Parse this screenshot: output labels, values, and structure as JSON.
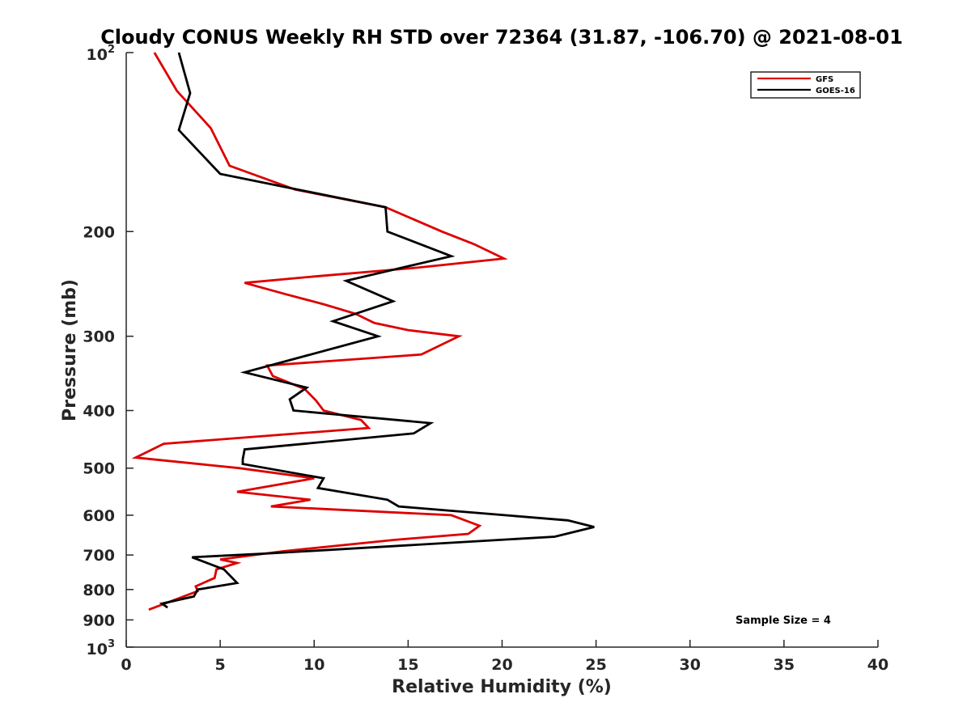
{
  "chart_data": {
    "type": "line",
    "title": "Cloudy CONUS Weekly RH STD over 72364 (31.87, -106.70) @ 2021-08-01",
    "xlabel": "Relative Humidity (%)",
    "ylabel": "Pressure (mb)",
    "xlim": [
      0,
      40
    ],
    "ylim": [
      100,
      1000
    ],
    "y_scale": "log",
    "y_reversed": true,
    "grid": false,
    "legend_position": "top-right",
    "x_ticks": [
      0,
      5,
      10,
      15,
      20,
      25,
      30,
      35,
      40
    ],
    "x_tick_labels": [
      "0",
      "5",
      "10",
      "15",
      "20",
      "25",
      "30",
      "35",
      "40"
    ],
    "y_ticks": [
      200,
      300,
      400,
      500,
      600,
      700,
      800,
      900
    ],
    "y_tick_labels": [
      "200",
      "300",
      "400",
      "500",
      "600",
      "700",
      "800",
      "900"
    ],
    "y_end_labels": [
      {
        "base": "10",
        "exp": "2",
        "value": 100
      },
      {
        "base": "10",
        "exp": "3",
        "value": 1000
      }
    ],
    "series": [
      {
        "name": "GFS",
        "color": "#dd0000",
        "points": [
          {
            "x": 1.5,
            "y": 100
          },
          {
            "x": 2.7,
            "y": 116
          },
          {
            "x": 4.5,
            "y": 134
          },
          {
            "x": 5.5,
            "y": 155
          },
          {
            "x": 9.0,
            "y": 170
          },
          {
            "x": 13.8,
            "y": 182
          },
          {
            "x": 16.8,
            "y": 200
          },
          {
            "x": 18.5,
            "y": 210
          },
          {
            "x": 20.1,
            "y": 222
          },
          {
            "x": 15.5,
            "y": 230
          },
          {
            "x": 10.0,
            "y": 238
          },
          {
            "x": 6.3,
            "y": 244
          },
          {
            "x": 8.5,
            "y": 255
          },
          {
            "x": 10.5,
            "y": 265
          },
          {
            "x": 12.2,
            "y": 275
          },
          {
            "x": 13.2,
            "y": 285
          },
          {
            "x": 15.0,
            "y": 293
          },
          {
            "x": 17.7,
            "y": 300
          },
          {
            "x": 15.7,
            "y": 322
          },
          {
            "x": 7.5,
            "y": 336
          },
          {
            "x": 7.8,
            "y": 350
          },
          {
            "x": 9.5,
            "y": 368
          },
          {
            "x": 10.1,
            "y": 385
          },
          {
            "x": 10.5,
            "y": 400
          },
          {
            "x": 12.5,
            "y": 415
          },
          {
            "x": 12.9,
            "y": 428
          },
          {
            "x": 2.0,
            "y": 455
          },
          {
            "x": 0.5,
            "y": 480
          },
          {
            "x": 6.0,
            "y": 500
          },
          {
            "x": 10.0,
            "y": 520
          },
          {
            "x": 5.9,
            "y": 548
          },
          {
            "x": 9.8,
            "y": 565
          },
          {
            "x": 7.7,
            "y": 580
          },
          {
            "x": 17.3,
            "y": 600
          },
          {
            "x": 18.8,
            "y": 625
          },
          {
            "x": 18.2,
            "y": 645
          },
          {
            "x": 14.3,
            "y": 660
          },
          {
            "x": 8.3,
            "y": 690
          },
          {
            "x": 5.0,
            "y": 712
          },
          {
            "x": 5.9,
            "y": 722
          },
          {
            "x": 4.8,
            "y": 740
          },
          {
            "x": 4.7,
            "y": 765
          },
          {
            "x": 3.7,
            "y": 790
          },
          {
            "x": 3.8,
            "y": 805
          },
          {
            "x": 1.2,
            "y": 865
          }
        ]
      },
      {
        "name": "GOES-16",
        "color": "#000000",
        "points": [
          {
            "x": 2.8,
            "y": 100
          },
          {
            "x": 3.4,
            "y": 117
          },
          {
            "x": 2.8,
            "y": 135
          },
          {
            "x": 5.0,
            "y": 160
          },
          {
            "x": 13.8,
            "y": 182
          },
          {
            "x": 13.9,
            "y": 200
          },
          {
            "x": 17.3,
            "y": 220
          },
          {
            "x": 11.7,
            "y": 242
          },
          {
            "x": 14.2,
            "y": 262
          },
          {
            "x": 11.0,
            "y": 283
          },
          {
            "x": 13.4,
            "y": 300
          },
          {
            "x": 6.3,
            "y": 345
          },
          {
            "x": 9.6,
            "y": 366
          },
          {
            "x": 8.7,
            "y": 383
          },
          {
            "x": 8.9,
            "y": 400
          },
          {
            "x": 16.2,
            "y": 420
          },
          {
            "x": 15.3,
            "y": 437
          },
          {
            "x": 6.3,
            "y": 465
          },
          {
            "x": 6.2,
            "y": 483
          },
          {
            "x": 6.2,
            "y": 492
          },
          {
            "x": 10.5,
            "y": 520
          },
          {
            "x": 10.2,
            "y": 540
          },
          {
            "x": 13.9,
            "y": 565
          },
          {
            "x": 14.5,
            "y": 580
          },
          {
            "x": 23.5,
            "y": 612
          },
          {
            "x": 24.9,
            "y": 628
          },
          {
            "x": 22.8,
            "y": 652
          },
          {
            "x": 7.8,
            "y": 695
          },
          {
            "x": 3.5,
            "y": 706
          },
          {
            "x": 5.2,
            "y": 740
          },
          {
            "x": 5.9,
            "y": 780
          },
          {
            "x": 3.8,
            "y": 800
          },
          {
            "x": 3.6,
            "y": 822
          },
          {
            "x": 1.9,
            "y": 845
          },
          {
            "x": 2.2,
            "y": 858
          }
        ]
      }
    ],
    "annotation": "Sample Size = 4"
  }
}
